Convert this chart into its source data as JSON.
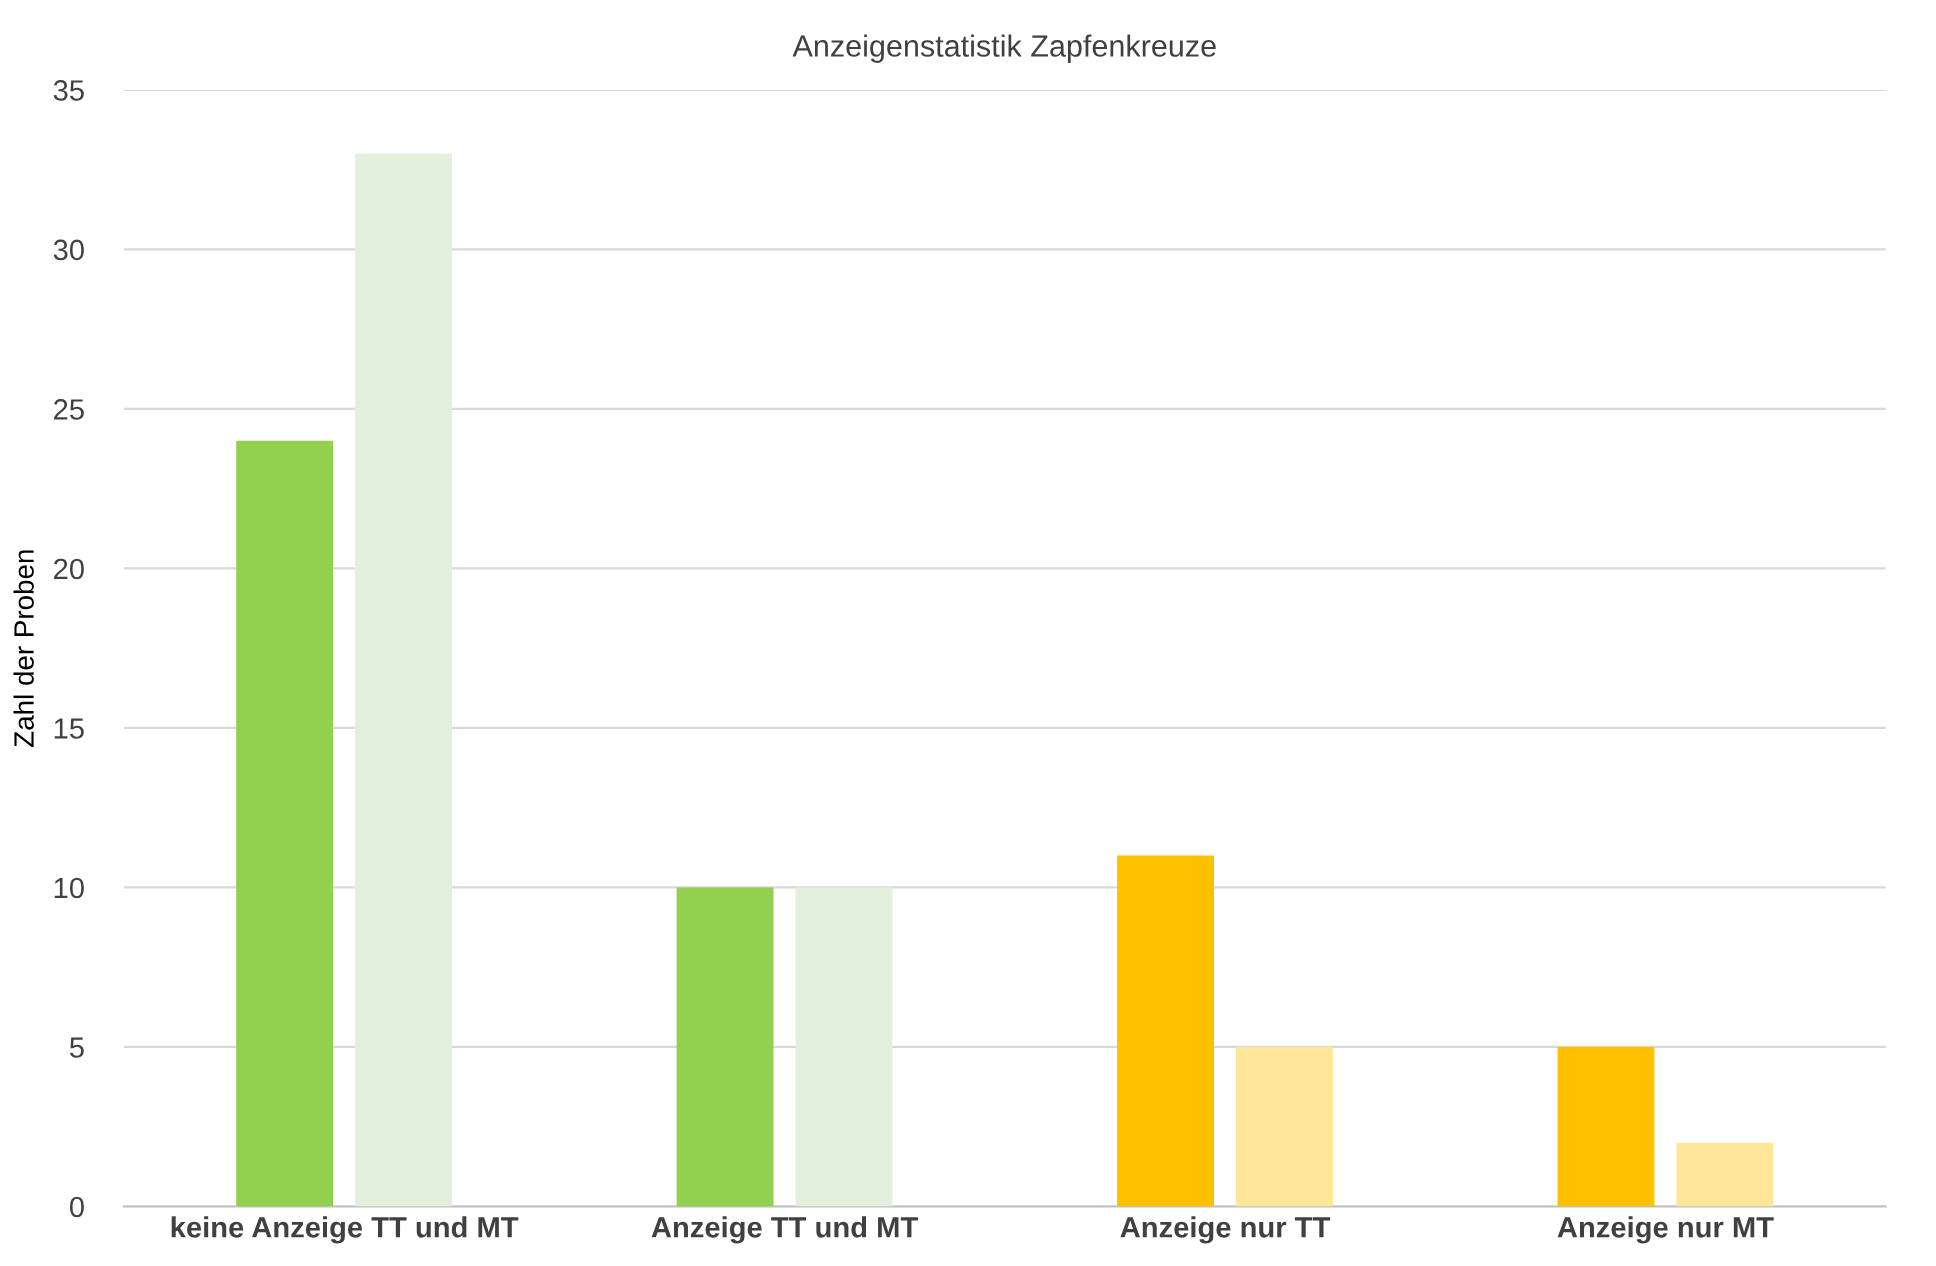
{
  "chart_data": {
    "type": "bar",
    "title": "Anzeigenstatistik Zapfenkreuze",
    "ylabel": "Zahl der Proben",
    "categories": [
      "keine Anzeige TT und MT",
      "Anzeige TT und MT",
      "Anzeige nur TT",
      "Anzeige nur MT"
    ],
    "series": [
      {
        "colors": [
          "#92d050",
          "#92d050",
          "#ffc000",
          "#ffc000"
        ],
        "values": [
          24,
          10,
          11,
          5
        ]
      },
      {
        "colors": [
          "#e2efda",
          "#e2efda",
          "#ffe699",
          "#ffe699"
        ],
        "values": [
          33,
          10,
          5,
          2
        ]
      }
    ],
    "ylim": [
      0,
      35
    ],
    "yticks": [
      0,
      5,
      10,
      15,
      20,
      25,
      30,
      35
    ],
    "grid": "y"
  }
}
